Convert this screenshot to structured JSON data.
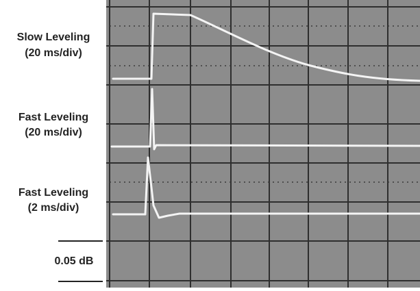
{
  "labels": [
    {
      "title": "Slow Leveling",
      "scale": "(20 ms/div)"
    },
    {
      "title": "Fast Leveling",
      "scale": "(20 ms/div)"
    },
    {
      "title": "Fast Leveling",
      "scale": "(2 ms/div)"
    }
  ],
  "reference": {
    "label": "0.05 dB"
  }
}
